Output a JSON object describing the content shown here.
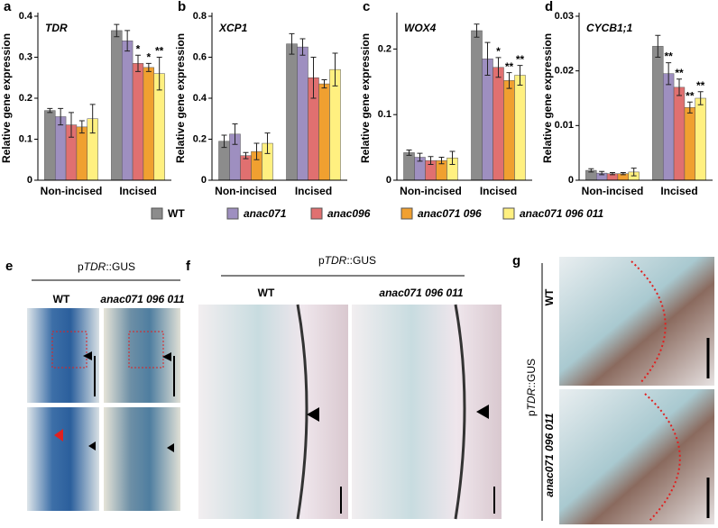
{
  "chart_data": [
    {
      "type": "bar",
      "panel": "a",
      "title": "TDR",
      "ylabel": "Relative gene expression",
      "categories": [
        "Non-incised",
        "Incised"
      ],
      "ylim": [
        0,
        0.4
      ],
      "yticks": [
        0,
        0.1,
        0.2,
        0.3,
        0.4
      ],
      "series": [
        {
          "name": "WT",
          "color": "#8c8c8c",
          "values": [
            0.17,
            0.365
          ],
          "errors": [
            0.005,
            0.015
          ],
          "significance": [
            null,
            null
          ]
        },
        {
          "name": "anac071",
          "color": "#9e8fc0",
          "values": [
            0.155,
            0.34
          ],
          "errors": [
            0.02,
            0.025
          ],
          "significance": [
            null,
            null
          ]
        },
        {
          "name": "anac096",
          "color": "#e07070",
          "values": [
            0.135,
            0.285
          ],
          "errors": [
            0.03,
            0.02
          ],
          "significance": [
            null,
            "*"
          ]
        },
        {
          "name": "anac071 096",
          "color": "#f0a030",
          "values": [
            0.13,
            0.275
          ],
          "errors": [
            0.015,
            0.01
          ],
          "significance": [
            null,
            "*"
          ]
        },
        {
          "name": "anac071 096 011",
          "color": "#fff080",
          "values": [
            0.15,
            0.26
          ],
          "errors": [
            0.035,
            0.04
          ],
          "significance": [
            null,
            "**"
          ]
        }
      ]
    },
    {
      "type": "bar",
      "panel": "b",
      "title": "XCP1",
      "ylabel": "Relative gene expression",
      "categories": [
        "Non-incised",
        "Incised"
      ],
      "ylim": [
        0,
        0.8
      ],
      "yticks": [
        0,
        0.2,
        0.4,
        0.6,
        0.8
      ],
      "series": [
        {
          "name": "WT",
          "color": "#8c8c8c",
          "values": [
            0.19,
            0.665
          ],
          "errors": [
            0.03,
            0.05
          ],
          "significance": [
            null,
            null
          ]
        },
        {
          "name": "anac071",
          "color": "#9e8fc0",
          "values": [
            0.225,
            0.65
          ],
          "errors": [
            0.05,
            0.04
          ],
          "significance": [
            null,
            null
          ]
        },
        {
          "name": "anac096",
          "color": "#e07070",
          "values": [
            0.12,
            0.5
          ],
          "errors": [
            0.015,
            0.1
          ],
          "significance": [
            null,
            null
          ]
        },
        {
          "name": "anac071 096",
          "color": "#f0a030",
          "values": [
            0.14,
            0.47
          ],
          "errors": [
            0.04,
            0.02
          ],
          "significance": [
            null,
            null
          ]
        },
        {
          "name": "anac071 096 011",
          "color": "#fff080",
          "values": [
            0.18,
            0.54
          ],
          "errors": [
            0.05,
            0.08
          ],
          "significance": [
            null,
            null
          ]
        }
      ]
    },
    {
      "type": "bar",
      "panel": "c",
      "title": "WOX4",
      "ylabel": "Relative gene expression",
      "categories": [
        "Non-incised",
        "Incised"
      ],
      "ylim": [
        0,
        0.25
      ],
      "yticks": [
        0,
        0.1,
        0.2
      ],
      "series": [
        {
          "name": "WT",
          "color": "#8c8c8c",
          "values": [
            0.042,
            0.228
          ],
          "errors": [
            0.004,
            0.01
          ],
          "significance": [
            null,
            null
          ]
        },
        {
          "name": "anac071",
          "color": "#9e8fc0",
          "values": [
            0.035,
            0.185
          ],
          "errors": [
            0.006,
            0.025
          ],
          "significance": [
            null,
            null
          ]
        },
        {
          "name": "anac096",
          "color": "#e07070",
          "values": [
            0.03,
            0.172
          ],
          "errors": [
            0.006,
            0.015
          ],
          "significance": [
            null,
            "*"
          ]
        },
        {
          "name": "anac071 096",
          "color": "#f0a030",
          "values": [
            0.03,
            0.152
          ],
          "errors": [
            0.005,
            0.012
          ],
          "significance": [
            null,
            "**"
          ]
        },
        {
          "name": "anac071 096 011",
          "color": "#fff080",
          "values": [
            0.034,
            0.16
          ],
          "errors": [
            0.01,
            0.015
          ],
          "significance": [
            null,
            "**"
          ]
        }
      ]
    },
    {
      "type": "bar",
      "panel": "d",
      "title": "CYCB1;1",
      "ylabel": "Relative gene expression",
      "categories": [
        "Non-incised",
        "Incised"
      ],
      "ylim": [
        0,
        0.03
      ],
      "yticks": [
        0,
        0.01,
        0.02,
        0.03
      ],
      "series": [
        {
          "name": "WT",
          "color": "#8c8c8c",
          "values": [
            0.0018,
            0.0245
          ],
          "errors": [
            0.0003,
            0.002
          ],
          "significance": [
            null,
            null
          ]
        },
        {
          "name": "anac071",
          "color": "#9e8fc0",
          "values": [
            0.0013,
            0.0195
          ],
          "errors": [
            0.0003,
            0.002
          ],
          "significance": [
            null,
            "**"
          ]
        },
        {
          "name": "anac096",
          "color": "#e07070",
          "values": [
            0.0012,
            0.017
          ],
          "errors": [
            0.0002,
            0.0015
          ],
          "significance": [
            null,
            "**"
          ]
        },
        {
          "name": "anac071 096",
          "color": "#f0a030",
          "values": [
            0.0012,
            0.0133
          ],
          "errors": [
            0.0002,
            0.001
          ],
          "significance": [
            null,
            "**"
          ]
        },
        {
          "name": "anac071 096 011",
          "color": "#fff080",
          "values": [
            0.0015,
            0.015
          ],
          "errors": [
            0.0007,
            0.0012
          ],
          "significance": [
            null,
            "**"
          ]
        }
      ]
    }
  ],
  "images": {
    "e": {
      "panel": "e",
      "reporter": {
        "prefix": "p",
        "gene": "TDR",
        "suffix": "::GUS"
      },
      "columns": [
        "WT",
        "anac071 096 011"
      ]
    },
    "f": {
      "panel": "f",
      "reporter": {
        "prefix": "p",
        "gene": "TDR",
        "suffix": "::GUS"
      },
      "columns": [
        "WT",
        "anac071 096 011"
      ]
    },
    "g": {
      "panel": "g",
      "reporter": {
        "prefix": "p",
        "gene": "TDR",
        "suffix": "::GUS"
      },
      "rows": [
        "WT",
        "anac071 096 011"
      ]
    }
  }
}
